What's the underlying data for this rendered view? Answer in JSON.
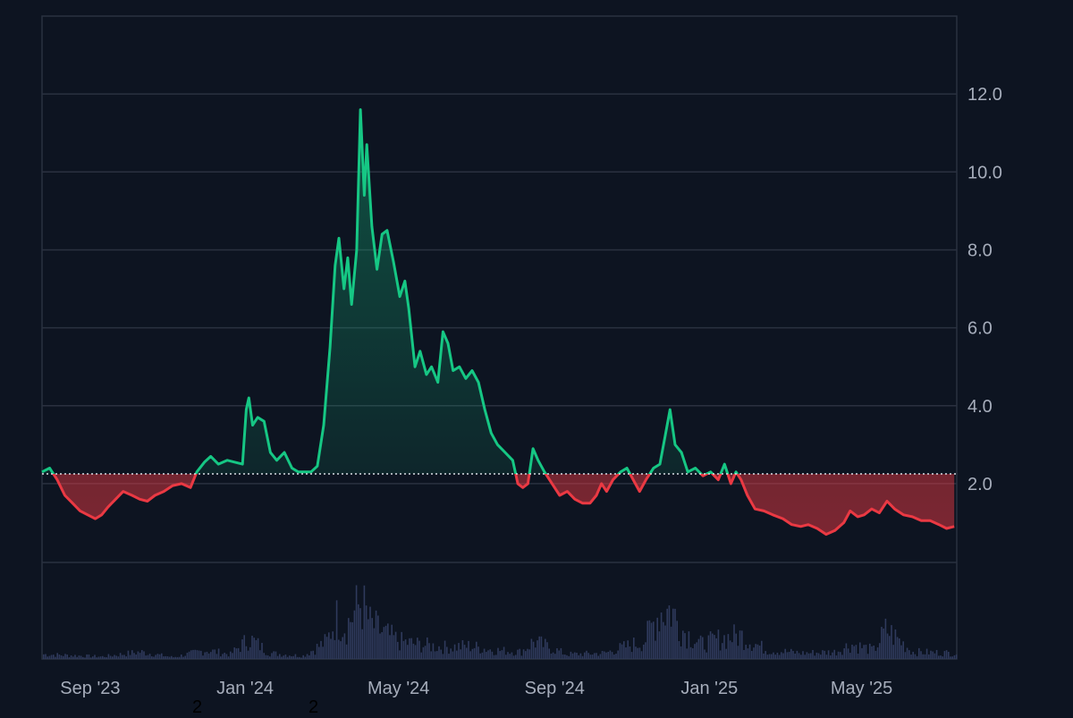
{
  "colors": {
    "background": "#0d1421",
    "grid": "#2a3140",
    "up": "#16c784",
    "down": "#ea3943",
    "volume": "#2f3a5c",
    "baseline": "#d9dde4",
    "text": "#a6adbb"
  },
  "stray_marks": [
    "2",
    "2"
  ],
  "chart_data": {
    "type": "area",
    "baseline_value": 2.25,
    "baseline_style": "dotted",
    "fill_above": "green",
    "fill_below": "red",
    "y_axis_side": "right",
    "ylim": [
      -2.5,
      14.0
    ],
    "yticks": [
      2.0,
      4.0,
      6.0,
      8.0,
      10.0,
      12.0
    ],
    "ytick_labels": [
      "2.0",
      "4.0",
      "6.0",
      "8.0",
      "10.0",
      "12.0"
    ],
    "xlim": [
      "2023-07-25",
      "2025-07-15"
    ],
    "xticks": [
      "2023-09-01",
      "2024-01-01",
      "2024-05-01",
      "2024-09-01",
      "2025-01-01",
      "2025-05-01"
    ],
    "xtick_labels": [
      "Sep '23",
      "Jan '24",
      "May '24",
      "Sep '24",
      "Jan '25",
      "May '25"
    ],
    "grid": true,
    "price": [
      [
        "2023-07-25",
        2.3
      ],
      [
        "2023-07-31",
        2.4
      ],
      [
        "2023-08-06",
        2.1
      ],
      [
        "2023-08-12",
        1.7
      ],
      [
        "2023-08-18",
        1.5
      ],
      [
        "2023-08-24",
        1.3
      ],
      [
        "2023-08-30",
        1.2
      ],
      [
        "2023-09-05",
        1.1
      ],
      [
        "2023-09-10",
        1.2
      ],
      [
        "2023-09-15",
        1.4
      ],
      [
        "2023-09-21",
        1.6
      ],
      [
        "2023-09-27",
        1.8
      ],
      [
        "2023-10-04",
        1.7
      ],
      [
        "2023-10-10",
        1.6
      ],
      [
        "2023-10-16",
        1.55
      ],
      [
        "2023-10-22",
        1.7
      ],
      [
        "2023-10-29",
        1.8
      ],
      [
        "2023-11-05",
        1.95
      ],
      [
        "2023-11-12",
        2.0
      ],
      [
        "2023-11-19",
        1.9
      ],
      [
        "2023-11-24",
        2.3
      ],
      [
        "2023-11-30",
        2.55
      ],
      [
        "2023-12-05",
        2.7
      ],
      [
        "2023-12-11",
        2.5
      ],
      [
        "2023-12-18",
        2.6
      ],
      [
        "2023-12-24",
        2.55
      ],
      [
        "2023-12-30",
        2.5
      ],
      [
        "2024-01-02",
        3.9
      ],
      [
        "2024-01-04",
        4.2
      ],
      [
        "2024-01-07",
        3.5
      ],
      [
        "2024-01-11",
        3.7
      ],
      [
        "2024-01-16",
        3.6
      ],
      [
        "2024-01-21",
        2.8
      ],
      [
        "2024-01-26",
        2.6
      ],
      [
        "2024-02-01",
        2.8
      ],
      [
        "2024-02-07",
        2.4
      ],
      [
        "2024-02-12",
        2.3
      ],
      [
        "2024-02-17",
        2.3
      ],
      [
        "2024-02-22",
        2.3
      ],
      [
        "2024-02-27",
        2.45
      ],
      [
        "2024-03-03",
        3.5
      ],
      [
        "2024-03-08",
        5.5
      ],
      [
        "2024-03-12",
        7.6
      ],
      [
        "2024-03-15",
        8.3
      ],
      [
        "2024-03-19",
        7.0
      ],
      [
        "2024-03-22",
        7.8
      ],
      [
        "2024-03-25",
        6.6
      ],
      [
        "2024-03-29",
        8.0
      ],
      [
        "2024-04-01",
        11.6
      ],
      [
        "2024-04-04",
        9.4
      ],
      [
        "2024-04-06",
        10.7
      ],
      [
        "2024-04-10",
        8.6
      ],
      [
        "2024-04-14",
        7.5
      ],
      [
        "2024-04-18",
        8.4
      ],
      [
        "2024-04-22",
        8.5
      ],
      [
        "2024-04-27",
        7.7
      ],
      [
        "2024-05-02",
        6.8
      ],
      [
        "2024-05-06",
        7.2
      ],
      [
        "2024-05-09",
        6.5
      ],
      [
        "2024-05-14",
        5.0
      ],
      [
        "2024-05-18",
        5.4
      ],
      [
        "2024-05-23",
        4.8
      ],
      [
        "2024-05-27",
        5.0
      ],
      [
        "2024-06-01",
        4.6
      ],
      [
        "2024-06-05",
        5.9
      ],
      [
        "2024-06-09",
        5.6
      ],
      [
        "2024-06-13",
        4.9
      ],
      [
        "2024-06-18",
        5.0
      ],
      [
        "2024-06-23",
        4.7
      ],
      [
        "2024-06-28",
        4.9
      ],
      [
        "2024-07-03",
        4.6
      ],
      [
        "2024-07-08",
        3.9
      ],
      [
        "2024-07-13",
        3.3
      ],
      [
        "2024-07-18",
        3.0
      ],
      [
        "2024-07-24",
        2.8
      ],
      [
        "2024-07-30",
        2.6
      ],
      [
        "2024-08-03",
        2.0
      ],
      [
        "2024-08-07",
        1.9
      ],
      [
        "2024-08-11",
        2.0
      ],
      [
        "2024-08-15",
        2.9
      ],
      [
        "2024-08-19",
        2.6
      ],
      [
        "2024-08-24",
        2.3
      ],
      [
        "2024-08-30",
        2.0
      ],
      [
        "2024-09-05",
        1.7
      ],
      [
        "2024-09-11",
        1.8
      ],
      [
        "2024-09-17",
        1.6
      ],
      [
        "2024-09-23",
        1.5
      ],
      [
        "2024-09-29",
        1.5
      ],
      [
        "2024-10-04",
        1.7
      ],
      [
        "2024-10-08",
        2.0
      ],
      [
        "2024-10-12",
        1.8
      ],
      [
        "2024-10-17",
        2.1
      ],
      [
        "2024-10-23",
        2.3
      ],
      [
        "2024-10-28",
        2.4
      ],
      [
        "2024-11-02",
        2.1
      ],
      [
        "2024-11-07",
        1.8
      ],
      [
        "2024-11-12",
        2.1
      ],
      [
        "2024-11-18",
        2.4
      ],
      [
        "2024-11-23",
        2.5
      ],
      [
        "2024-11-27",
        3.2
      ],
      [
        "2024-12-01",
        3.9
      ],
      [
        "2024-12-05",
        3.0
      ],
      [
        "2024-12-10",
        2.8
      ],
      [
        "2024-12-15",
        2.3
      ],
      [
        "2024-12-21",
        2.4
      ],
      [
        "2024-12-27",
        2.2
      ],
      [
        "2025-01-02",
        2.3
      ],
      [
        "2025-01-08",
        2.1
      ],
      [
        "2025-01-13",
        2.5
      ],
      [
        "2025-01-18",
        2.0
      ],
      [
        "2025-01-22",
        2.3
      ],
      [
        "2025-01-26",
        2.1
      ],
      [
        "2025-01-31",
        1.7
      ],
      [
        "2025-02-06",
        1.35
      ],
      [
        "2025-02-13",
        1.3
      ],
      [
        "2025-02-20",
        1.2
      ],
      [
        "2025-02-28",
        1.1
      ],
      [
        "2025-03-07",
        0.95
      ],
      [
        "2025-03-14",
        0.9
      ],
      [
        "2025-03-20",
        0.95
      ],
      [
        "2025-03-27",
        0.85
      ],
      [
        "2025-04-03",
        0.7
      ],
      [
        "2025-04-10",
        0.8
      ],
      [
        "2025-04-17",
        1.0
      ],
      [
        "2025-04-22",
        1.3
      ],
      [
        "2025-04-28",
        1.15
      ],
      [
        "2025-05-03",
        1.2
      ],
      [
        "2025-05-09",
        1.35
      ],
      [
        "2025-05-15",
        1.25
      ],
      [
        "2025-05-21",
        1.55
      ],
      [
        "2025-05-27",
        1.35
      ],
      [
        "2025-06-03",
        1.2
      ],
      [
        "2025-06-10",
        1.15
      ],
      [
        "2025-06-17",
        1.05
      ],
      [
        "2025-06-24",
        1.05
      ],
      [
        "2025-07-01",
        0.95
      ],
      [
        "2025-07-07",
        0.85
      ],
      [
        "2025-07-13",
        0.9
      ]
    ],
    "volume": [
      [
        "2023-07-25",
        0.08
      ],
      [
        "2023-09-10",
        0.04
      ],
      [
        "2023-10-10",
        0.12
      ],
      [
        "2023-11-05",
        0.03
      ],
      [
        "2023-12-01",
        0.15
      ],
      [
        "2023-12-20",
        0.08
      ],
      [
        "2024-01-04",
        0.35
      ],
      [
        "2024-01-20",
        0.1
      ],
      [
        "2024-02-15",
        0.05
      ],
      [
        "2024-03-05",
        0.3
      ],
      [
        "2024-03-12",
        0.7
      ],
      [
        "2024-03-20",
        0.55
      ],
      [
        "2024-04-01",
        0.98
      ],
      [
        "2024-04-08",
        0.6
      ],
      [
        "2024-04-18",
        0.45
      ],
      [
        "2024-05-01",
        0.3
      ],
      [
        "2024-05-15",
        0.25
      ],
      [
        "2024-06-05",
        0.2
      ],
      [
        "2024-06-25",
        0.22
      ],
      [
        "2024-07-15",
        0.15
      ],
      [
        "2024-08-05",
        0.12
      ],
      [
        "2024-08-15",
        0.3
      ],
      [
        "2024-09-10",
        0.08
      ],
      [
        "2024-10-10",
        0.1
      ],
      [
        "2024-10-25",
        0.2
      ],
      [
        "2024-11-10",
        0.3
      ],
      [
        "2024-11-22",
        0.8
      ],
      [
        "2024-12-01",
        0.85
      ],
      [
        "2024-12-10",
        0.5
      ],
      [
        "2024-12-25",
        0.25
      ],
      [
        "2025-01-10",
        0.35
      ],
      [
        "2025-01-25",
        0.4
      ],
      [
        "2025-02-15",
        0.15
      ],
      [
        "2025-03-15",
        0.1
      ],
      [
        "2025-04-10",
        0.12
      ],
      [
        "2025-04-22",
        0.25
      ],
      [
        "2025-05-10",
        0.15
      ],
      [
        "2025-05-20",
        0.5
      ],
      [
        "2025-06-10",
        0.12
      ],
      [
        "2025-07-13",
        0.1
      ]
    ]
  }
}
